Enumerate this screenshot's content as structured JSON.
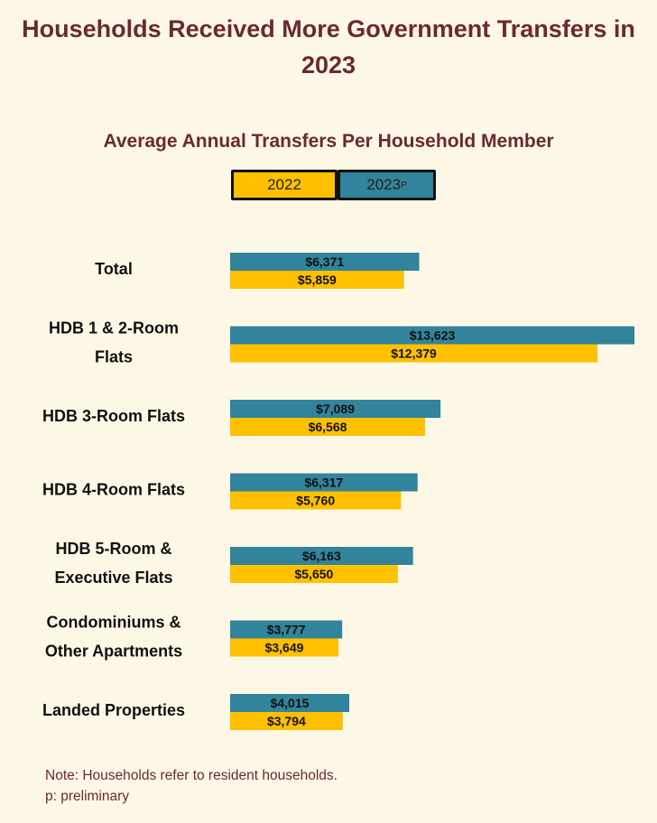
{
  "title": "Households Received More Government Transfers in 2023",
  "subtitle": "Average Annual Transfers Per Household Member",
  "legend": {
    "label_2022": "2022",
    "label_2023": "2023",
    "label_2023_sup": "P"
  },
  "notes": {
    "line1": "Note: Households refer to resident households.",
    "line2": "p: preliminary"
  },
  "colors": {
    "s2022": "#ffc000",
    "s2023": "#31849b",
    "title": "#6b2a2a"
  },
  "chart_data": {
    "type": "bar",
    "orientation": "horizontal",
    "title": "Households Received More Government Transfers in 2023",
    "subtitle": "Average Annual Transfers Per Household Member",
    "categories": [
      [
        "Total"
      ],
      [
        "HDB 1 & 2-Room",
        "Flats"
      ],
      [
        "HDB 3-Room Flats"
      ],
      [
        "HDB 4-Room Flats"
      ],
      [
        "HDB 5-Room &",
        "Executive Flats"
      ],
      [
        "Condominiums &",
        "Other Apartments"
      ],
      [
        "Landed Properties"
      ]
    ],
    "series": [
      {
        "name": "2023P",
        "values": [
          6371,
          13623,
          7089,
          6317,
          6163,
          3777,
          4015
        ],
        "labels": [
          "$6,371",
          "$13,623",
          "$7,089",
          "$6,317",
          "$6,163",
          "$3,777",
          "$4,015"
        ]
      },
      {
        "name": "2022",
        "values": [
          5859,
          12379,
          6568,
          5760,
          5650,
          3649,
          3794
        ],
        "labels": [
          "$5,859",
          "$12,379",
          "$6,568",
          "$5,760",
          "$5,650",
          "$3,649",
          "$3,794"
        ]
      }
    ],
    "xlim": [
      0,
      13623
    ],
    "grid": false,
    "legend": "top-center"
  }
}
